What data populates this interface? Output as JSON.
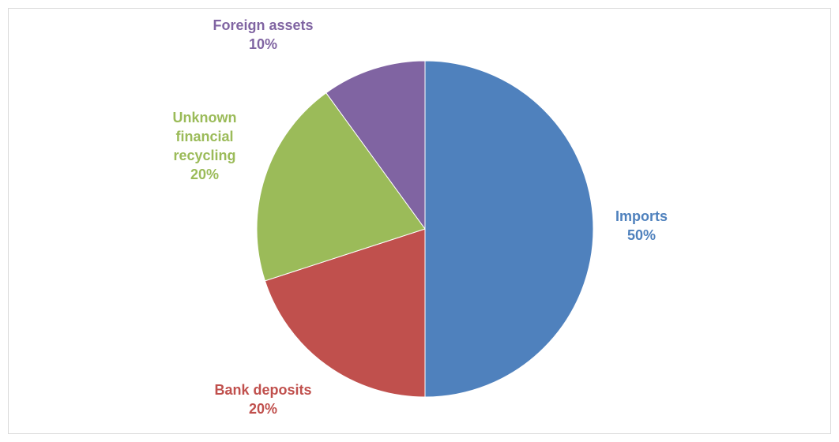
{
  "chart_data": {
    "type": "pie",
    "title": "",
    "categories": [
      "Imports",
      "Bank deposits",
      "Unknown financial recycling",
      "Foreign assets"
    ],
    "values": [
      50,
      20,
      20,
      10
    ],
    "value_labels": [
      "50%",
      "20%",
      "20%",
      "10%"
    ],
    "label_lines": [
      [
        "Imports"
      ],
      [
        "Bank deposits"
      ],
      [
        "Unknown",
        "financial",
        "recycling"
      ],
      [
        "Foreign assets"
      ]
    ],
    "colors": [
      "#4f81bd",
      "#c0504d",
      "#9bbb59",
      "#8064a2"
    ],
    "legend": "none",
    "data_labels": "outside, category name and percentage"
  }
}
